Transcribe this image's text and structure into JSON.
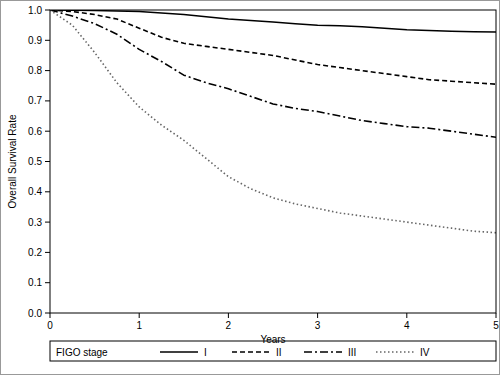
{
  "chart_data": {
    "type": "line",
    "x_label": "Years",
    "y_label": "Overall Survival Rate",
    "legend_title": "FIGO stage",
    "legend": "bottom",
    "grid": false,
    "x": [
      0,
      0.25,
      0.5,
      0.75,
      1,
      1.25,
      1.5,
      1.75,
      2,
      2.25,
      2.5,
      2.75,
      3,
      3.25,
      3.5,
      3.75,
      4,
      4.25,
      4.5,
      4.75,
      5
    ],
    "xlim": [
      0,
      5
    ],
    "xticks": [
      0,
      1,
      2,
      3,
      4,
      5
    ],
    "ylim": [
      0,
      1
    ],
    "yticks": [
      {
        "value": 0,
        "label": "0.0"
      },
      0.1,
      0.2,
      0.3,
      0.4,
      0.5,
      0.6,
      0.7,
      0.8,
      0.9,
      {
        "value": 1,
        "label": "1.0"
      }
    ],
    "series": [
      {
        "name": "I",
        "color": "#000000",
        "line_style": "solid",
        "values": [
          1,
          0.999,
          0.998,
          0.997,
          0.995,
          0.99,
          0.985,
          0.978,
          0.97,
          0.965,
          0.96,
          0.955,
          0.95,
          0.948,
          0.945,
          0.94,
          0.935,
          0.932,
          0.93,
          0.928,
          0.927
        ]
      },
      {
        "name": "II",
        "color": "#000000",
        "line_style": "dashed",
        "values": [
          1,
          0.995,
          0.985,
          0.97,
          0.94,
          0.91,
          0.89,
          0.88,
          0.87,
          0.86,
          0.85,
          0.835,
          0.82,
          0.81,
          0.8,
          0.79,
          0.78,
          0.77,
          0.765,
          0.76,
          0.755
        ]
      },
      {
        "name": "III",
        "color": "#000000",
        "line_style": "dashdot",
        "values": [
          1,
          0.98,
          0.955,
          0.92,
          0.87,
          0.83,
          0.785,
          0.76,
          0.74,
          0.715,
          0.69,
          0.675,
          0.665,
          0.65,
          0.635,
          0.625,
          0.615,
          0.61,
          0.6,
          0.59,
          0.58
        ]
      },
      {
        "name": "IV",
        "color": "#666666",
        "line_style": "dotted",
        "values": [
          1,
          0.95,
          0.86,
          0.76,
          0.68,
          0.62,
          0.57,
          0.51,
          0.45,
          0.41,
          0.38,
          0.36,
          0.345,
          0.33,
          0.32,
          0.31,
          0.3,
          0.29,
          0.28,
          0.27,
          0.265
        ]
      }
    ]
  }
}
